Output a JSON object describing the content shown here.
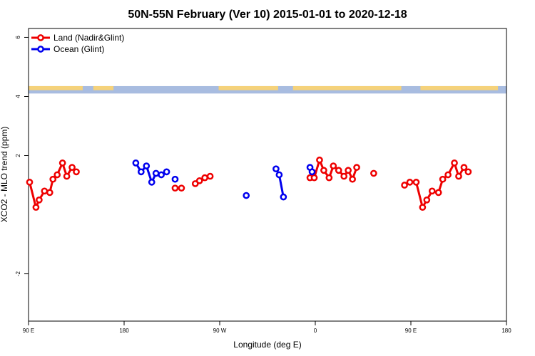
{
  "chart_data": {
    "type": "line",
    "title": "50N-55N February (Ver 10)   2015-01-01 to 2020-12-18",
    "xlabel": "Longitude (deg E)",
    "ylabel": "XCO2 - MLO trend (ppm)",
    "xlim": [
      90,
      540
    ],
    "ylim": [
      -3.6,
      6.3
    ],
    "x_ticks": [
      {
        "value": 90,
        "label": "90 E"
      },
      {
        "value": 180,
        "label": "180"
      },
      {
        "value": 270,
        "label": "90 W"
      },
      {
        "value": 360,
        "label": "0"
      },
      {
        "value": 450,
        "label": "90 E"
      },
      {
        "value": 540,
        "label": "180"
      }
    ],
    "y_ticks": [
      {
        "value": -2,
        "label": "-2"
      },
      {
        "value": 2,
        "label": "2"
      },
      {
        "value": 4,
        "label": "4"
      },
      {
        "value": 6,
        "label": "6"
      }
    ],
    "legend": {
      "position": "top-left"
    },
    "grid": false,
    "land_ocean_band": {
      "ymin": 4.1,
      "ymax": 4.35,
      "land_color": "#f5d27a",
      "ocean_color": "#a8bce0"
    },
    "series": [
      {
        "name": "Land (Nadir&Glint)",
        "color": "#ee0000",
        "segments": [
          [
            [
              91,
              1.1
            ],
            [
              97,
              0.25
            ],
            [
              100,
              0.5
            ],
            [
              105,
              0.8
            ],
            [
              110,
              0.75
            ],
            [
              113,
              1.2
            ],
            [
              117,
              1.35
            ],
            [
              122,
              1.75
            ],
            [
              126,
              1.3
            ],
            [
              131,
              1.6
            ],
            [
              135,
              1.45
            ]
          ],
          [
            [
              228,
              0.9
            ],
            [
              234,
              0.9
            ]
          ],
          [
            [
              247,
              1.05
            ],
            [
              251,
              1.15
            ],
            [
              256,
              1.25
            ],
            [
              261,
              1.3
            ]
          ],
          [
            [
              355,
              1.25
            ],
            [
              359,
              1.25
            ],
            [
              364,
              1.85
            ],
            [
              368,
              1.5
            ],
            [
              373,
              1.25
            ],
            [
              377,
              1.65
            ],
            [
              382,
              1.5
            ],
            [
              387,
              1.3
            ],
            [
              391,
              1.5
            ],
            [
              395,
              1.2
            ],
            [
              399,
              1.6
            ]
          ],
          [
            [
              415,
              1.4
            ]
          ],
          [
            [
              444,
              1.0
            ],
            [
              449,
              1.1
            ],
            [
              455,
              1.1
            ],
            [
              461,
              0.25
            ],
            [
              465,
              0.5
            ],
            [
              470,
              0.8
            ],
            [
              476,
              0.75
            ],
            [
              480,
              1.2
            ],
            [
              485,
              1.35
            ],
            [
              491,
              1.75
            ],
            [
              495,
              1.3
            ],
            [
              500,
              1.6
            ],
            [
              504,
              1.45
            ]
          ]
        ]
      },
      {
        "name": "Ocean (Glint)",
        "color": "#0000ee",
        "segments": [
          [
            [
              191,
              1.75
            ],
            [
              196,
              1.45
            ],
            [
              201,
              1.65
            ],
            [
              206,
              1.1
            ],
            [
              210,
              1.4
            ],
            [
              215,
              1.35
            ],
            [
              220,
              1.45
            ]
          ],
          [
            [
              228,
              1.2
            ]
          ],
          [
            [
              295,
              0.65
            ]
          ],
          [
            [
              323,
              1.55
            ],
            [
              326,
              1.35
            ],
            [
              330,
              0.6
            ]
          ],
          [
            [
              355,
              1.6
            ],
            [
              357,
              1.45
            ]
          ]
        ]
      }
    ]
  }
}
